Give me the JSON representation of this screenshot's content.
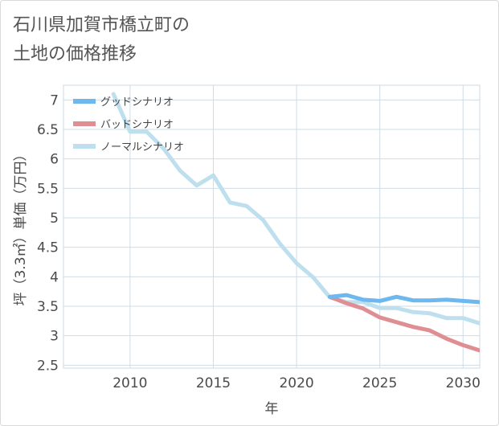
{
  "title_line1": "石川県加賀市橋立町の",
  "title_line2": "土地の価格推移",
  "chart_data": {
    "type": "line",
    "xlabel": "年",
    "ylabel": "坪（3.3㎡）単価（万円）",
    "xlim": [
      2006,
      2031
    ],
    "ylim": [
      2.45,
      7.25
    ],
    "xticks": [
      2010,
      2015,
      2020,
      2025,
      2030
    ],
    "yticks": [
      2.5,
      3,
      3.5,
      4,
      4.5,
      5,
      5.5,
      6,
      6.5,
      7
    ],
    "grid": true,
    "legend_position": "top-left",
    "series": [
      {
        "name": "グッドシナリオ",
        "color": "#6db8ef",
        "x": [
          2022,
          2023,
          2024,
          2025,
          2026,
          2027,
          2028,
          2029,
          2030,
          2031
        ],
        "y": [
          3.66,
          3.69,
          3.61,
          3.59,
          3.66,
          3.6,
          3.6,
          3.61,
          3.59,
          3.57
        ]
      },
      {
        "name": "バッドシナリオ",
        "color": "#df8e94",
        "x": [
          2022,
          2023,
          2024,
          2025,
          2026,
          2027,
          2028,
          2029,
          2030,
          2031
        ],
        "y": [
          3.66,
          3.55,
          3.46,
          3.31,
          3.23,
          3.15,
          3.09,
          2.95,
          2.84,
          2.75
        ]
      },
      {
        "name": "ノーマルシナリオ",
        "color": "#bddfee",
        "x": [
          2009,
          2010,
          2011,
          2012,
          2013,
          2014,
          2015,
          2016,
          2017,
          2018,
          2019,
          2020,
          2021,
          2022,
          2023,
          2024,
          2025,
          2026,
          2027,
          2028,
          2029,
          2030,
          2031
        ],
        "y": [
          7.1,
          6.46,
          6.46,
          6.18,
          5.8,
          5.55,
          5.72,
          5.26,
          5.2,
          4.96,
          4.56,
          4.23,
          3.99,
          3.65,
          3.57,
          3.57,
          3.47,
          3.47,
          3.4,
          3.38,
          3.3,
          3.3,
          3.21
        ]
      }
    ]
  }
}
